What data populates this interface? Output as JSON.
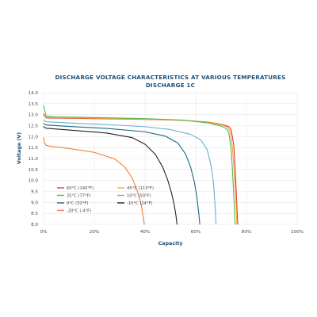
{
  "chart_data": {
    "type": "line",
    "title": "DISCHARGE VOLTAGE CHARACTERISTICS AT VARIOUS TEMPERATURES",
    "subtitle": "DISCHARGE 1C",
    "xlabel": "Capacity",
    "ylabel": "Voltage (V)",
    "xlim": [
      0,
      100
    ],
    "ylim": [
      8.0,
      14.0
    ],
    "x_ticks": [
      0,
      20,
      40,
      60,
      80,
      100
    ],
    "x_tick_labels": [
      "0%",
      "20%",
      "40%",
      "60%",
      "80%",
      "100%"
    ],
    "y_ticks": [
      8.0,
      8.5,
      9.0,
      9.5,
      10.0,
      10.5,
      11.0,
      11.5,
      12.0,
      12.5,
      13.0,
      13.5,
      14.0
    ],
    "y_tick_labels": [
      "8.0",
      "8.5",
      "9.0",
      "9.5",
      "10.0",
      "10.5",
      "11.0",
      "11.5",
      "12.0",
      "12.5",
      "13.0",
      "13.5",
      "14.0"
    ],
    "grid": true,
    "legend_position": "bottom-left",
    "series": [
      {
        "name": "60°C (140°F)",
        "color": "#e53b2c",
        "x": [
          0,
          1,
          5,
          20,
          40,
          55,
          65,
          70,
          73,
          74,
          75,
          75.6,
          76,
          76.3,
          76.6
        ],
        "y": [
          13.0,
          12.85,
          12.84,
          12.82,
          12.78,
          12.74,
          12.66,
          12.56,
          12.46,
          12.3,
          11.6,
          10.4,
          9.4,
          8.6,
          8.0
        ]
      },
      {
        "name": "45°C (113°F)",
        "color": "#f3a83b",
        "x": [
          0,
          1,
          5,
          20,
          40,
          55,
          65,
          70,
          72.5,
          73.5,
          74.5,
          75.2,
          75.8,
          76.2
        ],
        "y": [
          13.05,
          12.88,
          12.86,
          12.84,
          12.79,
          12.74,
          12.65,
          12.54,
          12.43,
          12.25,
          11.5,
          10.3,
          9.2,
          8.0
        ]
      },
      {
        "name": "25°C (77°F)",
        "color": "#5ab552",
        "x": [
          0,
          1,
          5,
          20,
          40,
          55,
          65,
          70,
          72,
          73,
          74,
          74.6,
          75.1,
          75.5
        ],
        "y": [
          13.4,
          12.93,
          12.9,
          12.87,
          12.82,
          12.75,
          12.62,
          12.48,
          12.36,
          12.2,
          11.4,
          10.2,
          9.1,
          8.0
        ]
      },
      {
        "name": "10°C (50°F)",
        "color": "#6baed6",
        "x": [
          0,
          1,
          10,
          25,
          40,
          50,
          58,
          62,
          64.5,
          66,
          67,
          67.6,
          68
        ],
        "y": [
          12.75,
          12.68,
          12.62,
          12.55,
          12.45,
          12.32,
          12.1,
          11.85,
          11.4,
          10.7,
          9.9,
          8.9,
          8.0
        ]
      },
      {
        "name": "0°C (32°F)",
        "color": "#176a86",
        "x": [
          0,
          1,
          10,
          25,
          40,
          48,
          53,
          56,
          58,
          59.5,
          60.5,
          61.2,
          61.6
        ],
        "y": [
          12.6,
          12.53,
          12.46,
          12.37,
          12.22,
          12.02,
          11.7,
          11.2,
          10.6,
          9.9,
          9.2,
          8.5,
          8.0
        ]
      },
      {
        "name": "-10°C (14°F)",
        "color": "#222222",
        "x": [
          0,
          1,
          10,
          25,
          35,
          40,
          44,
          47,
          49,
          50.5,
          51.5,
          52.2,
          52.6
        ],
        "y": [
          12.45,
          12.38,
          12.3,
          12.16,
          11.95,
          11.65,
          11.2,
          10.6,
          10.0,
          9.4,
          8.9,
          8.4,
          8.0
        ]
      },
      {
        "name": "-20°C (-4°F)",
        "color": "#f07e3a",
        "x": [
          0,
          0.3,
          1,
          3,
          10,
          20,
          28,
          32,
          35,
          37,
          38.5,
          39.3,
          39.7
        ],
        "y": [
          11.95,
          11.72,
          11.6,
          11.55,
          11.46,
          11.28,
          10.98,
          10.62,
          10.1,
          9.5,
          8.9,
          8.3,
          8.0
        ]
      }
    ]
  }
}
